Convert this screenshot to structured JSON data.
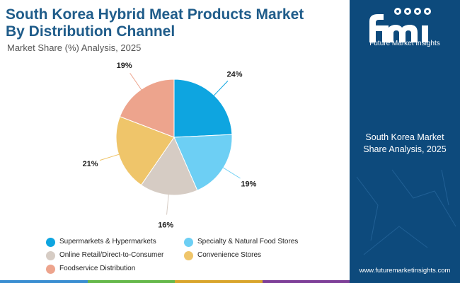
{
  "header": {
    "title_line1": "South Korea Hybrid Meat Products Market",
    "title_line2": "By Distribution Channel",
    "subtitle": "Market Share (%) Analysis, 2025"
  },
  "sidebar": {
    "logo_text": "Future Market Insights",
    "label_line1": "South Korea Market",
    "label_line2": "Share Analysis, 2025",
    "website": "www.futuremarketinsights.com"
  },
  "colors": {
    "title": "#1f5c8a",
    "sidebar_bg": "#0d4a7c",
    "bottom_bar": [
      "#3a8ed1",
      "#65b84a",
      "#d9a52c",
      "#7e3f98"
    ]
  },
  "chart_data": {
    "type": "pie",
    "title": "South Korea Hybrid Meat Products Market By Distribution Channel",
    "subtitle": "Market Share (%) Analysis, 2025",
    "start_angle_deg": 0,
    "direction": "clockwise",
    "legend_position": "bottom",
    "slices": [
      {
        "label": "Supermarkets & Hypermarkets",
        "value": 24,
        "display": "24%",
        "color": "#0ea5e0"
      },
      {
        "label": "Specialty & Natural Food Stores",
        "value": 19,
        "display": "19%",
        "color": "#6dcff4"
      },
      {
        "label": "Online Retail/Direct-to-Consumer",
        "value": 16,
        "display": "16%",
        "color": "#d6ccc4"
      },
      {
        "label": "Convenience Stores",
        "value": 21,
        "display": "21%",
        "color": "#efc56a"
      },
      {
        "label": "Foodservice Distribution",
        "value": 19,
        "display": "19%",
        "color": "#eda48d"
      }
    ]
  }
}
